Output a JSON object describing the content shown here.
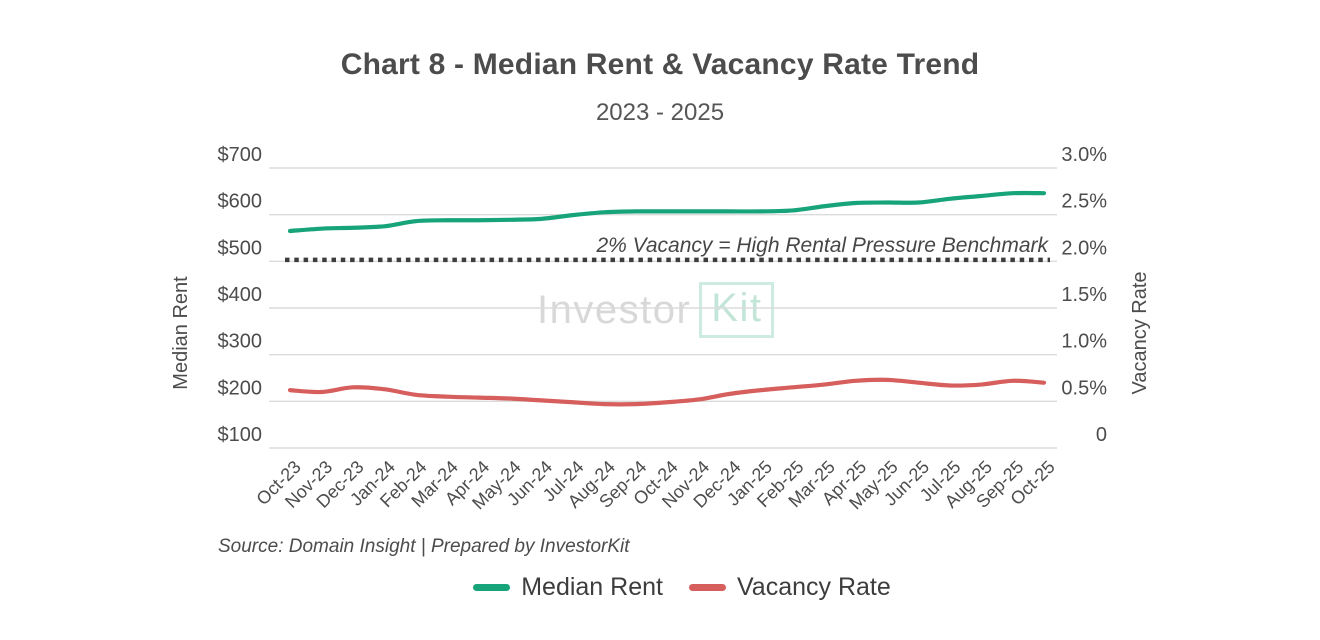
{
  "header": {
    "title": "Chart 8 - Median Rent & Vacancy Rate Trend",
    "subtitle": "2023 - 2025"
  },
  "chart_data": {
    "type": "line",
    "x": [
      "Oct-23",
      "Nov-23",
      "Dec-23",
      "Jan-24",
      "Feb-24",
      "Mar-24",
      "Apr-24",
      "May-24",
      "Jun-24",
      "Jul-24",
      "Aug-24",
      "Sep-24",
      "Oct-24",
      "Nov-24",
      "Dec-24",
      "Jan-25",
      "Feb-25",
      "Mar-25",
      "Apr-25",
      "May-25",
      "Jun-25",
      "Jul-25",
      "Aug-25",
      "Sep-25",
      "Oct-25"
    ],
    "series": [
      {
        "name": "Median Rent",
        "axis": "left",
        "color": "#18a47b",
        "values": [
          565,
          570,
          572,
          575,
          586,
          588,
          588,
          589,
          591,
          599,
          605,
          607,
          607,
          607,
          607,
          607,
          609,
          618,
          625,
          626,
          626,
          634,
          640,
          646,
          646
        ]
      },
      {
        "name": "Vacancy Rate",
        "axis": "right",
        "color": "#d65e5c",
        "values": [
          0.62,
          0.6,
          0.65,
          0.63,
          0.57,
          0.55,
          0.54,
          0.53,
          0.51,
          0.49,
          0.47,
          0.47,
          0.49,
          0.52,
          0.58,
          0.62,
          0.65,
          0.68,
          0.72,
          0.73,
          0.7,
          0.67,
          0.68,
          0.72,
          0.7
        ]
      }
    ],
    "left_axis": {
      "label": "Median Rent",
      "tick_labels": [
        "$700",
        "$600",
        "$500",
        "$400",
        "$300",
        "$200",
        "$100"
      ],
      "tick_values": [
        700,
        600,
        500,
        400,
        300,
        200,
        100
      ],
      "min": 100,
      "max": 700
    },
    "right_axis": {
      "label": "Vacancy Rate",
      "tick_labels": [
        "3.0%",
        "2.5%",
        "2.0%",
        "1.5%",
        "1.0%",
        "0.5%",
        "0"
      ],
      "tick_values": [
        3.0,
        2.5,
        2.0,
        1.5,
        1.0,
        0.5,
        0
      ],
      "min": 0,
      "max": 3.0
    },
    "benchmark": {
      "value_pct": 2.0,
      "label": "2% Vacancy = High Rental Pressure Benchmark",
      "line_color": "#3d3d3d",
      "text_color": "#464646"
    },
    "grid": true,
    "grid_color": "#dbdbdb",
    "legend_position": "bottom"
  },
  "watermark": {
    "part1": "Investor",
    "part2": "Kit"
  },
  "source": {
    "text": "Source: Domain Insight | Prepared by InvestorKit"
  },
  "legend": {
    "items": [
      {
        "label": "Median Rent",
        "color": "#18a47b"
      },
      {
        "label": "Vacancy Rate",
        "color": "#d65e5c"
      }
    ]
  }
}
